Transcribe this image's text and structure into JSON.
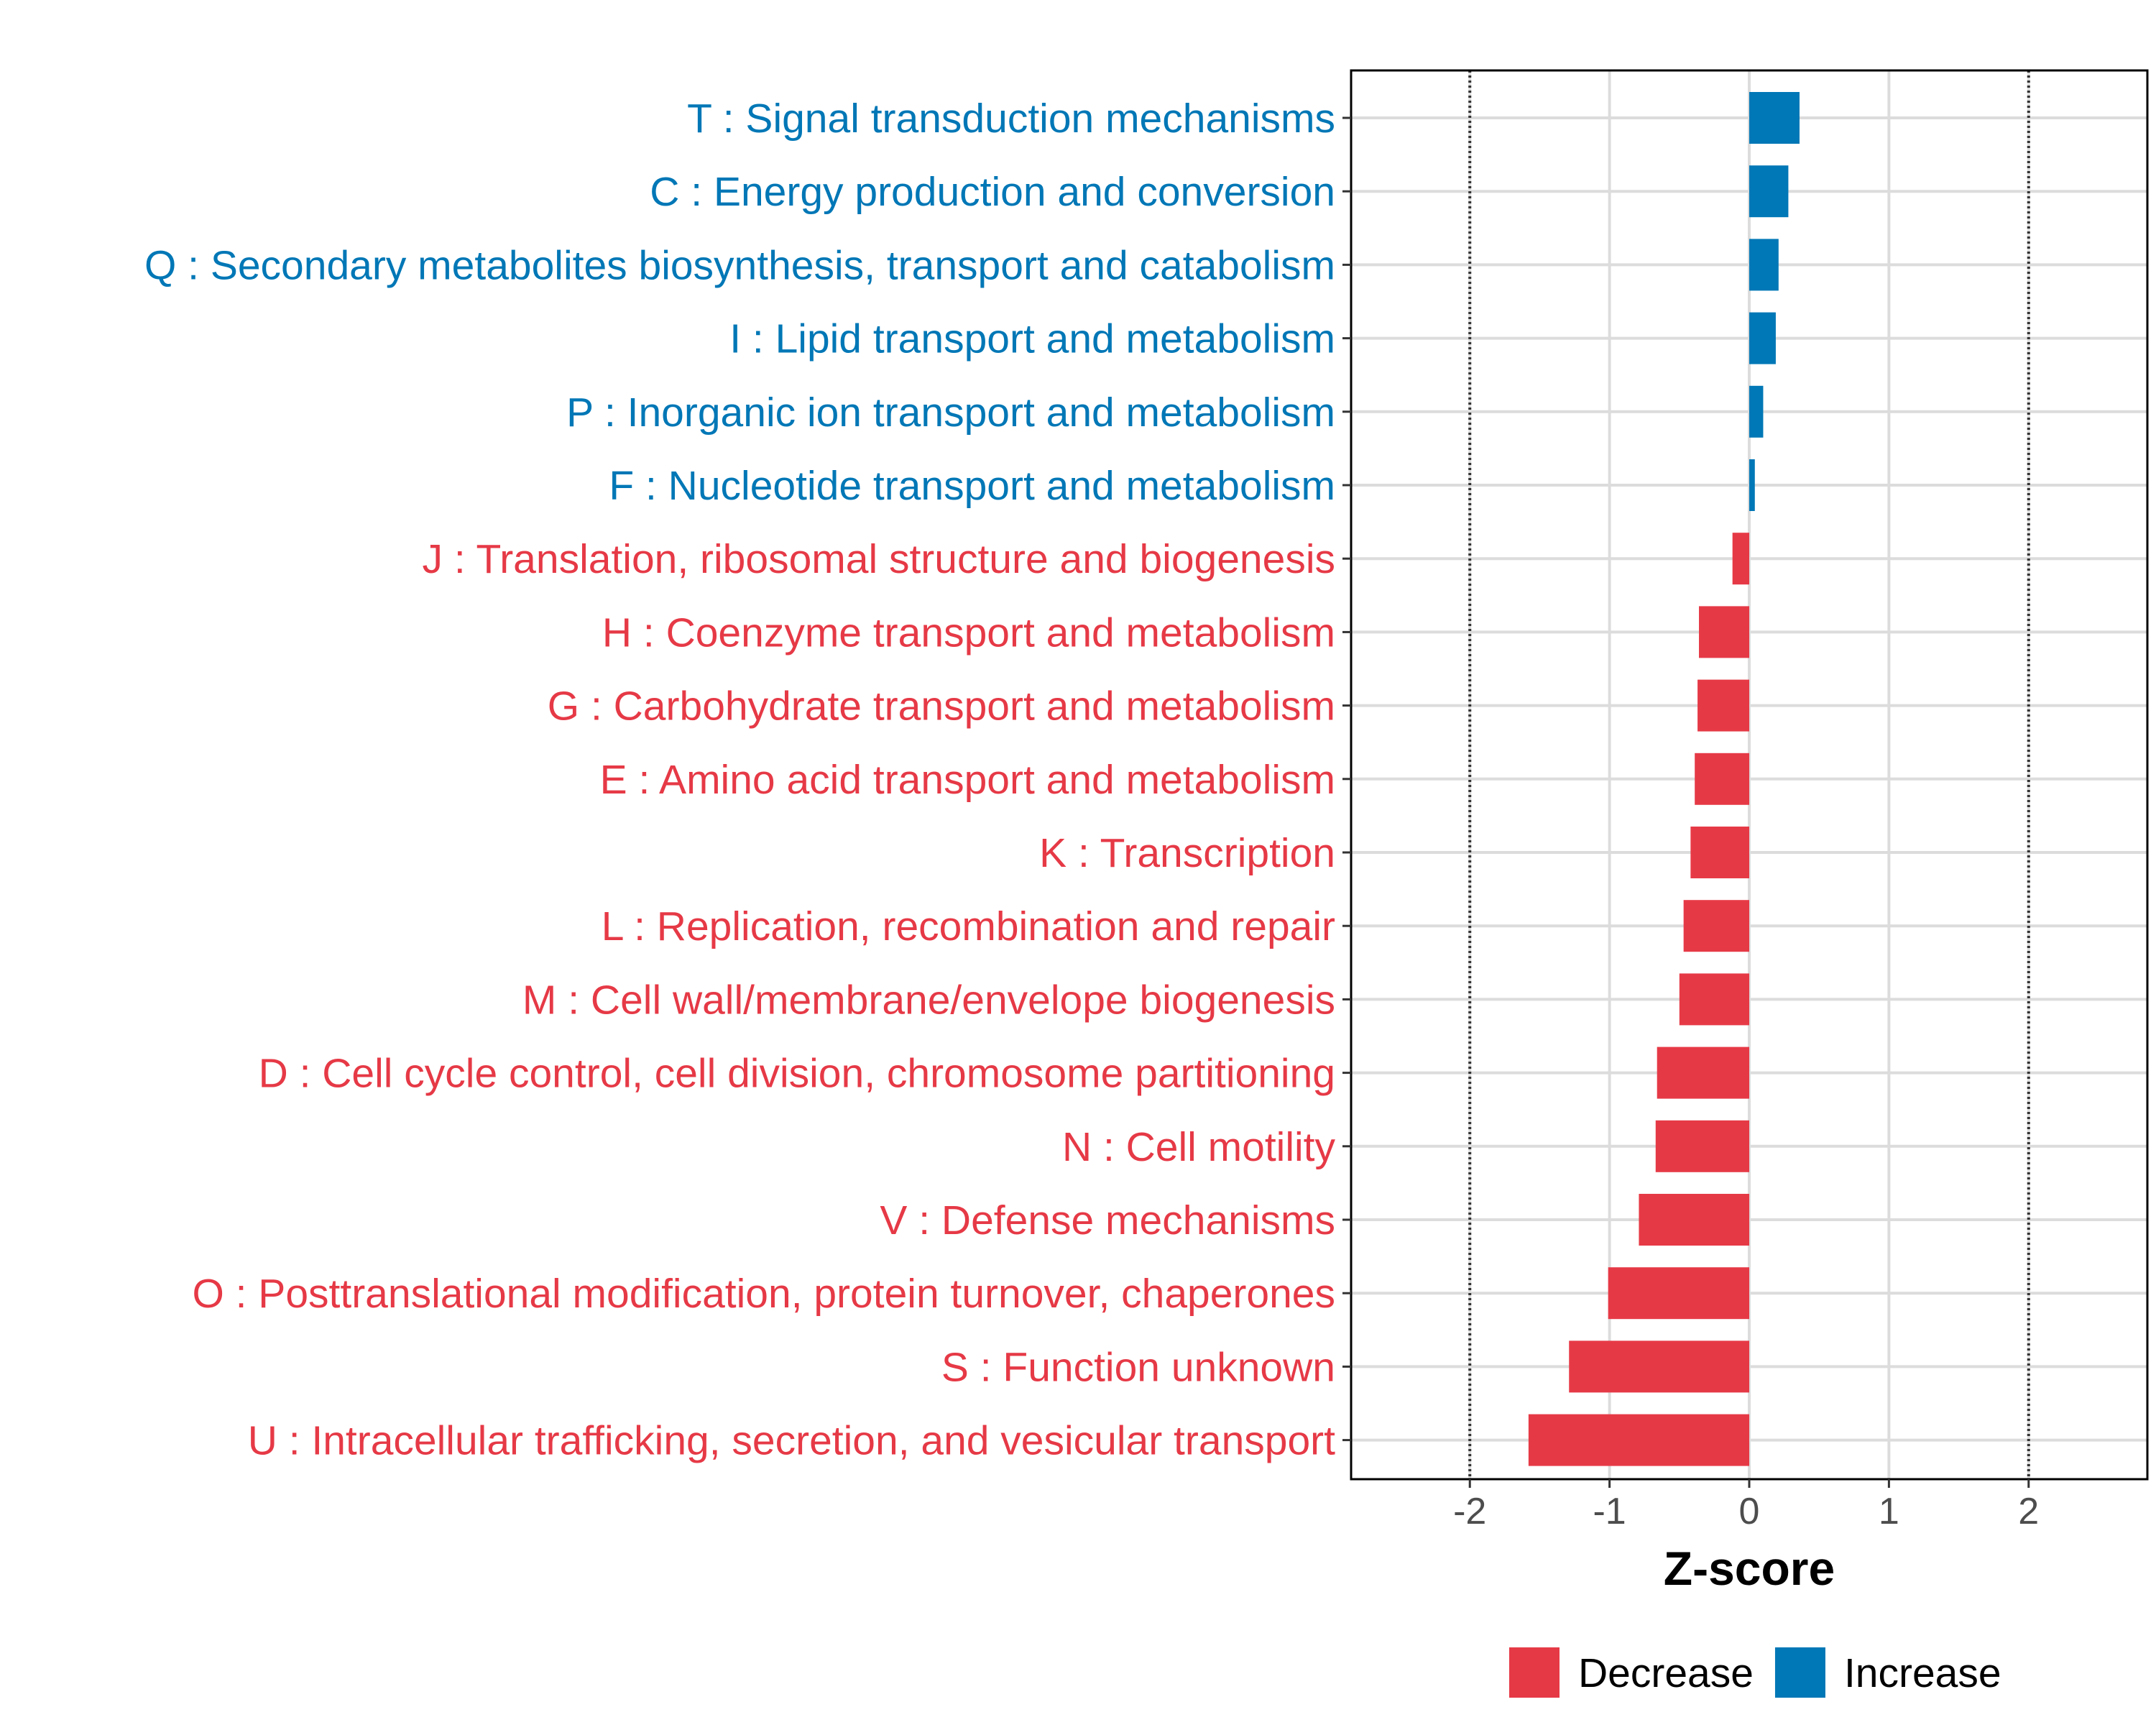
{
  "chart_data": {
    "type": "bar",
    "orientation": "horizontal",
    "xlabel": "Z-score",
    "ylabel": "",
    "xlim": [
      -2.85,
      2.85
    ],
    "xticks": [
      -2,
      -1,
      0,
      1,
      2
    ],
    "xtick_labels": [
      "-2",
      "-1",
      "0",
      "1",
      "2"
    ],
    "reference_lines": [
      -2,
      2
    ],
    "grid": true,
    "legend_position": "bottom",
    "colors": {
      "Decrease": "#e63946",
      "Increase": "#0077b6"
    },
    "legend": [
      {
        "name": "Decrease",
        "color": "#e63946"
      },
      {
        "name": "Increase",
        "color": "#0077b6"
      }
    ],
    "categories": [
      "T : Signal transduction mechanisms",
      "C : Energy production and conversion",
      "Q : Secondary metabolites biosynthesis, transport and catabolism",
      "I : Lipid transport and metabolism",
      "P : Inorganic ion transport and metabolism",
      "F : Nucleotide transport and metabolism",
      "J : Translation, ribosomal structure and biogenesis",
      "H : Coenzyme transport and metabolism",
      "G : Carbohydrate transport and metabolism",
      "E : Amino acid transport and metabolism",
      "K : Transcription",
      "L : Replication, recombination and repair",
      "M : Cell wall/membrane/envelope biogenesis",
      "D : Cell cycle control, cell division, chromosome partitioning",
      "N : Cell motility",
      "V : Defense mechanisms",
      "O : Posttranslational modification, protein turnover, chaperones",
      "S : Function unknown",
      "U : Intracellular trafficking, secretion, and vesicular transport"
    ],
    "values": [
      0.36,
      0.28,
      0.21,
      0.19,
      0.1,
      0.04,
      -0.12,
      -0.36,
      -0.37,
      -0.39,
      -0.42,
      -0.47,
      -0.5,
      -0.66,
      -0.67,
      -0.79,
      -1.01,
      -1.29,
      -1.58
    ],
    "groups": [
      "Increase",
      "Increase",
      "Increase",
      "Increase",
      "Increase",
      "Increase",
      "Decrease",
      "Decrease",
      "Decrease",
      "Decrease",
      "Decrease",
      "Decrease",
      "Decrease",
      "Decrease",
      "Decrease",
      "Decrease",
      "Decrease",
      "Decrease",
      "Decrease"
    ]
  }
}
